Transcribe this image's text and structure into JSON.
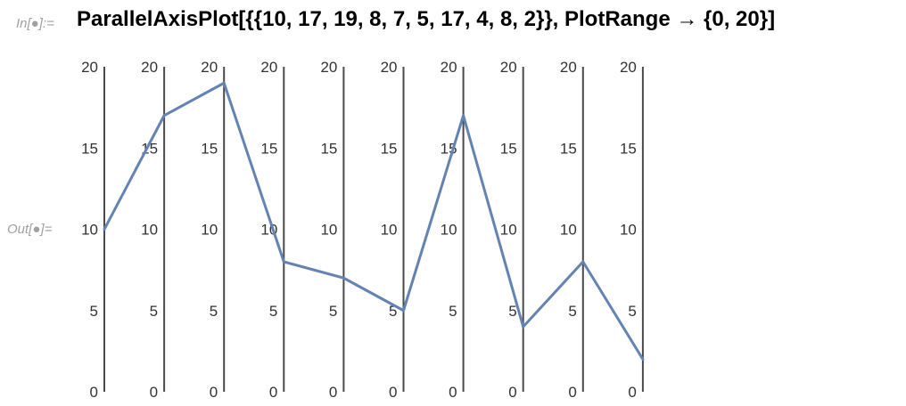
{
  "notebook": {
    "input_label": "In[●]:=",
    "output_label": "Out[●]=",
    "input_code": "ParallelAxisPlot[{{10, 17, 19, 8, 7, 5, 17, 4, 8, 2}}, PlotRange → {0, 20}]"
  },
  "chart_data": {
    "type": "line",
    "subtype": "parallel-axis",
    "axes_count": 10,
    "axis_range": [
      0,
      20
    ],
    "tick_values": [
      0,
      5,
      10,
      15,
      20
    ],
    "tick_labels": [
      "0",
      "5",
      "10",
      "15",
      "20"
    ],
    "series": [
      {
        "values": [
          10,
          17,
          19,
          8,
          7,
          5,
          17,
          4,
          8,
          2
        ]
      }
    ],
    "colors": {
      "series": "#6383b3",
      "axis": "#4a4a4a",
      "tick_text": "#333333"
    },
    "grid": false,
    "legend": "none"
  }
}
